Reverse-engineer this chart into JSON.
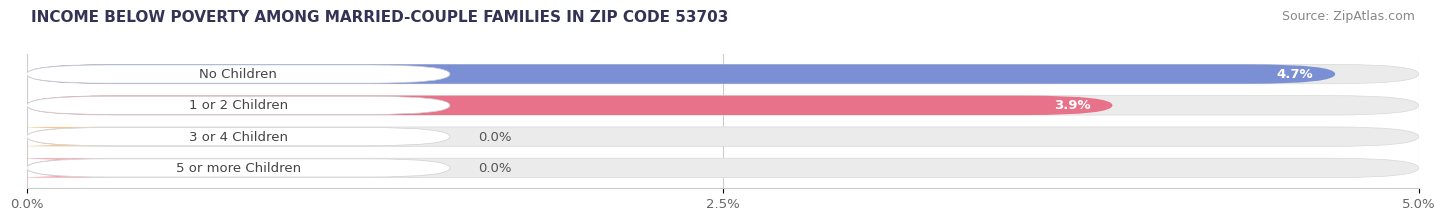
{
  "title": "INCOME BELOW POVERTY AMONG MARRIED-COUPLE FAMILIES IN ZIP CODE 53703",
  "source": "Source: ZipAtlas.com",
  "categories": [
    "No Children",
    "1 or 2 Children",
    "3 or 4 Children",
    "5 or more Children"
  ],
  "values": [
    4.7,
    3.9,
    0.0,
    0.0
  ],
  "bar_colors": [
    "#7b8fd4",
    "#e8728a",
    "#f0c896",
    "#f0a0a8"
  ],
  "xlim": [
    0,
    5.0
  ],
  "xticks": [
    0.0,
    2.5,
    5.0
  ],
  "xticklabels": [
    "0.0%",
    "2.5%",
    "5.0%"
  ],
  "bar_height": 0.62,
  "title_fontsize": 11,
  "source_fontsize": 9,
  "label_fontsize": 9.5,
  "value_fontsize": 9.5,
  "background_color": "#ffffff",
  "bar_bg_color": "#ebebeb",
  "fig_width": 14.06,
  "fig_height": 2.32
}
